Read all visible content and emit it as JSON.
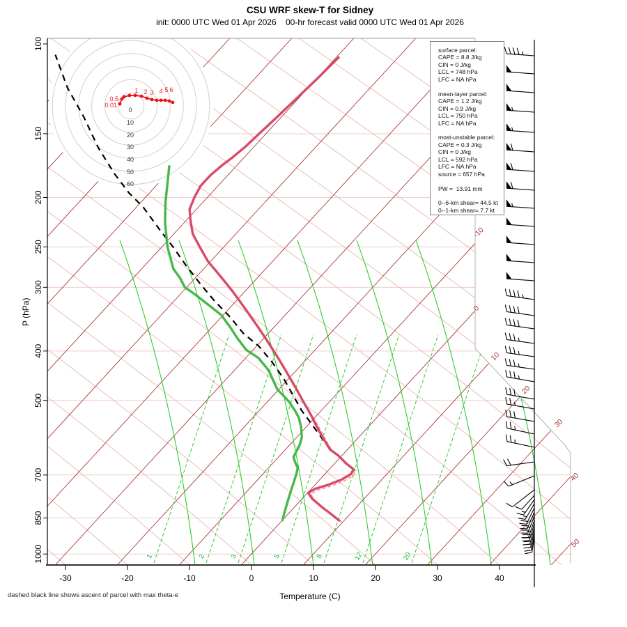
{
  "header": {
    "title": "CSU WRF skew-T for Sidney",
    "subtitle": "init: 0000 UTC Wed 01 Apr 2026    00-hr forecast valid 0000 UTC Wed 01 Apr 2026"
  },
  "footer_note": "dashed black line shows ascent of parcel with max theta-e",
  "parcel_info": {
    "lines": [
      "surface parcel:",
      "CAPE = 8.8 J/kg",
      "CIN = 0 J/kg",
      "LCL = 748 hPa",
      "LFC = NA hPa",
      "",
      "mean-layer parcel:",
      "CAPE = 1.2 J/kg",
      "CIN = 0.9 J/kg",
      "LCL = 750 hPa",
      "LFC = NA hPa",
      "",
      "most-unstable parcel:",
      "CAPE = 0.3 J/kg",
      "CIN = 0 J/kg",
      "LCL = 592 hPa",
      "LFC = NA hPa",
      "source = 657 hPa",
      "",
      "PW =  13.91 mm",
      "",
      "0--6-km shear= 44.5 kt",
      "0--1-km shear= 7.7 kt"
    ]
  },
  "chart_data": {
    "type": "skew-t",
    "title": "CSU WRF skew-T for Sidney",
    "xlabel": "Temperature (C)",
    "ylabel": "P (hPa)",
    "x_ticks": [
      -30,
      -20,
      -10,
      0,
      10,
      20,
      30,
      40
    ],
    "p_ticks": [
      100,
      150,
      200,
      250,
      300,
      400,
      500,
      700,
      850,
      1000
    ],
    "pressure_lines": [
      150,
      200,
      250,
      300,
      400,
      500,
      700,
      850,
      1000
    ],
    "p_range": [
      100,
      1000
    ],
    "t_range_at_1000": [
      -33,
      46
    ],
    "grid": "skew-t background: isotherms every 10C, dry adiabats, moist adiabats, mixing-ratio lines",
    "isotherm_labels": [
      {
        "v": "-10",
        "x": 689,
        "y": 336
      },
      {
        "v": "0",
        "x": 686,
        "y": 445
      },
      {
        "v": "10",
        "x": 713,
        "y": 514
      },
      {
        "v": "20",
        "x": 757,
        "y": 562
      },
      {
        "v": "30",
        "x": 804,
        "y": 610
      },
      {
        "v": "40",
        "x": 827,
        "y": 687
      },
      {
        "v": "50",
        "x": 828,
        "y": 782
      }
    ],
    "mixing_ratio_labels": [
      {
        "v": "1",
        "x": 217
      },
      {
        "v": "2",
        "x": 292
      },
      {
        "v": "3",
        "x": 338
      },
      {
        "v": "5",
        "x": 400
      },
      {
        "v": "8",
        "x": 461
      },
      {
        "v": "12",
        "x": 517
      },
      {
        "v": "20",
        "x": 587
      }
    ],
    "temperature_profile_pT": [
      [
        862,
        9.4
      ],
      [
        841,
        7.5
      ],
      [
        809,
        4.4
      ],
      [
        779,
        1.6
      ],
      [
        759,
        0.1
      ],
      [
        745,
        0.6
      ],
      [
        731,
        2.2
      ],
      [
        715,
        3.5
      ],
      [
        697,
        4.2
      ],
      [
        682,
        3.9
      ],
      [
        665,
        1.9
      ],
      [
        642,
        -0.5
      ],
      [
        624,
        -2.8
      ],
      [
        593,
        -5.6
      ],
      [
        560,
        -8.6
      ],
      [
        531,
        -11.3
      ],
      [
        503,
        -14.2
      ],
      [
        475,
        -17.2
      ],
      [
        445,
        -20.7
      ],
      [
        417,
        -24.2
      ],
      [
        388,
        -28.2
      ],
      [
        359,
        -32.6
      ],
      [
        331,
        -37.3
      ],
      [
        306,
        -41.9
      ],
      [
        285,
        -46.3
      ],
      [
        267,
        -50.4
      ],
      [
        250,
        -53.9
      ],
      [
        236,
        -56.9
      ],
      [
        222,
        -59.3
      ],
      [
        211,
        -61.1
      ],
      [
        200,
        -62.1
      ],
      [
        190,
        -62.8
      ],
      [
        181,
        -62.8
      ],
      [
        173,
        -62.4
      ],
      [
        167,
        -61.9
      ],
      [
        159,
        -61.4
      ],
      [
        150,
        -61.1
      ],
      [
        139,
        -60.7
      ],
      [
        128,
        -60.3
      ],
      [
        117,
        -59.9
      ],
      [
        109,
        -59.7
      ],
      [
        106,
        -59.6
      ]
    ],
    "dewpoint_profile_pT": [
      [
        862,
        0.1
      ],
      [
        830,
        -0.8
      ],
      [
        794,
        -1.8
      ],
      [
        755,
        -2.9
      ],
      [
        724,
        -3.8
      ],
      [
        697,
        -4.6
      ],
      [
        678,
        -5.3
      ],
      [
        659,
        -6.7
      ],
      [
        645,
        -7.6
      ],
      [
        628,
        -8.0
      ],
      [
        611,
        -8.4
      ],
      [
        590,
        -9.2
      ],
      [
        564,
        -10.8
      ],
      [
        540,
        -12.6
      ],
      [
        523,
        -14.3
      ],
      [
        503,
        -16.5
      ],
      [
        488,
        -18.5
      ],
      [
        476,
        -20.2
      ],
      [
        437,
        -24.4
      ],
      [
        413,
        -27.9
      ],
      [
        398,
        -31.1
      ],
      [
        378,
        -34.2
      ],
      [
        359,
        -37.1
      ],
      [
        340,
        -40.3
      ],
      [
        326,
        -43.6
      ],
      [
        311,
        -47.3
      ],
      [
        300,
        -50.3
      ],
      [
        288,
        -52.4
      ],
      [
        276,
        -54.9
      ],
      [
        250,
        -59.1
      ],
      [
        224,
        -63.1
      ],
      [
        204,
        -66.1
      ],
      [
        173,
        -70.9
      ]
    ],
    "parcel_ascent_pT": [
      [
        624,
        -2.8
      ],
      [
        578,
        -7.3
      ],
      [
        523,
        -13.2
      ],
      [
        454,
        -20.7
      ],
      [
        420,
        -25.2
      ],
      [
        391,
        -29.7
      ],
      [
        369,
        -34.1
      ],
      [
        343,
        -38.6
      ],
      [
        319,
        -43.5
      ],
      [
        296,
        -48.2
      ],
      [
        273,
        -53.1
      ],
      [
        250,
        -58.2
      ],
      [
        231,
        -63.0
      ],
      [
        209,
        -68.9
      ],
      [
        196,
        -73.3
      ],
      [
        180,
        -78.4
      ],
      [
        160,
        -84.9
      ],
      [
        139,
        -91.9
      ],
      [
        122,
        -98.8
      ],
      [
        105,
        -105.7
      ]
    ],
    "virtual_temp_note": "light-red dash-dot curve hugs the temperature curve below ~530 hPa",
    "hodograph": {
      "unit": "kt",
      "rings": [
        10,
        20,
        30,
        40,
        50,
        60
      ],
      "ring_labels": [
        "0",
        "10",
        "20",
        "30",
        "40",
        "50",
        "60"
      ],
      "trace_kt": [
        [
          -8.5,
          1.5
        ],
        [
          -6.9,
          5.3
        ],
        [
          -5.3,
          6.9
        ],
        [
          -1.1,
          8.0
        ],
        [
          3.2,
          8.0
        ],
        [
          8.0,
          7.4
        ],
        [
          12.2,
          5.9
        ],
        [
          16.0,
          4.8
        ],
        [
          19.7,
          4.3
        ],
        [
          22.9,
          4.3
        ],
        [
          26.1,
          4.3
        ],
        [
          29.3,
          3.7
        ],
        [
          31.9,
          2.7
        ]
      ],
      "height_labels_km": [
        {
          "t": "0.01",
          "x": 168,
          "y": 154,
          "a": "end"
        },
        {
          "t": "0.5",
          "x": 170,
          "y": 145,
          "a": "end"
        },
        {
          "t": "1",
          "x": 196,
          "y": 133
        },
        {
          "t": "2",
          "x": 209,
          "y": 135
        },
        {
          "t": "3",
          "x": 218,
          "y": 136
        },
        {
          "t": "4",
          "x": 231,
          "y": 134
        },
        {
          "t": "5",
          "x": 239,
          "y": 132
        },
        {
          "t": "6",
          "x": 246,
          "y": 132
        }
      ]
    },
    "wind_barbs": [
      {
        "y": 80,
        "f": 0,
        "b": 4,
        "h": 1,
        "a": -4
      },
      {
        "y": 106,
        "f": 1,
        "b": 0,
        "h": 0,
        "a": -4
      },
      {
        "y": 133,
        "f": 1,
        "b": 0,
        "h": 0,
        "a": -4
      },
      {
        "y": 161,
        "f": 1,
        "b": 0,
        "h": 1,
        "a": -4
      },
      {
        "y": 190,
        "f": 1,
        "b": 0,
        "h": 1,
        "a": -4
      },
      {
        "y": 218,
        "f": 1,
        "b": 1,
        "h": 0,
        "a": -4
      },
      {
        "y": 246,
        "f": 1,
        "b": 1,
        "h": 0,
        "a": -4
      },
      {
        "y": 273,
        "f": 1,
        "b": 1,
        "h": 0,
        "a": -4
      },
      {
        "y": 299,
        "f": 1,
        "b": 0,
        "h": 1,
        "a": -4
      },
      {
        "y": 325,
        "f": 1,
        "b": 0,
        "h": 0,
        "a": -4
      },
      {
        "y": 351,
        "f": 1,
        "b": 0,
        "h": 0,
        "a": -4
      },
      {
        "y": 377,
        "f": 1,
        "b": 0,
        "h": 0,
        "a": -4
      },
      {
        "y": 403,
        "f": 1,
        "b": 0,
        "h": 0,
        "a": -4
      },
      {
        "y": 430,
        "f": 0,
        "b": 4,
        "h": 1,
        "a": -8
      },
      {
        "y": 453,
        "f": 0,
        "b": 4,
        "h": 0,
        "a": -8
      },
      {
        "y": 472,
        "f": 0,
        "b": 4,
        "h": 0,
        "a": -8
      },
      {
        "y": 493,
        "f": 0,
        "b": 3,
        "h": 1,
        "a": -8
      },
      {
        "y": 512,
        "f": 0,
        "b": 3,
        "h": 1,
        "a": -8
      },
      {
        "y": 530,
        "f": 0,
        "b": 3,
        "h": 1,
        "a": -8
      },
      {
        "y": 548,
        "f": 0,
        "b": 3,
        "h": 1,
        "a": -10
      },
      {
        "y": 573,
        "f": 0,
        "b": 3,
        "h": 0,
        "a": -10
      },
      {
        "y": 587,
        "f": 0,
        "b": 2,
        "h": 1,
        "a": -10
      },
      {
        "y": 605,
        "f": 0,
        "b": 3,
        "h": 0,
        "a": -10
      },
      {
        "y": 623,
        "f": 0,
        "b": 2,
        "h": 1,
        "a": -12
      },
      {
        "y": 642,
        "f": 0,
        "b": 2,
        "h": 1,
        "a": -12
      },
      {
        "y": 663,
        "f": 0,
        "b": 2,
        "h": 0,
        "a": 8
      },
      {
        "y": 683,
        "f": 0,
        "b": 1,
        "h": 1,
        "a": 22
      },
      {
        "y": 703,
        "f": 0,
        "b": 1,
        "h": 0,
        "a": 38
      },
      {
        "y": 711,
        "f": 0,
        "b": 1,
        "h": 0,
        "a": 48,
        "s": 27
      },
      {
        "y": 717,
        "f": 0,
        "b": 1,
        "h": 1,
        "a": 55,
        "s": 27
      },
      {
        "y": 723,
        "f": 0,
        "b": 1,
        "h": 1,
        "a": 60,
        "s": 26
      },
      {
        "y": 729,
        "f": 0,
        "b": 2,
        "h": 0,
        "a": 64,
        "s": 26
      },
      {
        "y": 735,
        "f": 0,
        "b": 2,
        "h": 0,
        "a": 67,
        "s": 26
      },
      {
        "y": 741,
        "f": 0,
        "b": 2,
        "h": 1,
        "a": 69,
        "s": 26
      },
      {
        "y": 747,
        "f": 0,
        "b": 2,
        "h": 1,
        "a": 71,
        "s": 26
      },
      {
        "y": 752,
        "f": 0,
        "b": 2,
        "h": 1,
        "a": 73,
        "s": 25
      },
      {
        "y": 757,
        "f": 0,
        "b": 2,
        "h": 0,
        "a": 75,
        "s": 25
      },
      {
        "y": 762,
        "f": 0,
        "b": 1,
        "h": 1,
        "a": 77,
        "s": 24
      },
      {
        "y": 767,
        "f": 0,
        "b": 1,
        "h": 1,
        "a": 79,
        "s": 23
      },
      {
        "y": 771,
        "f": 0,
        "b": 1,
        "h": 0,
        "a": 81,
        "s": 22
      }
    ],
    "colors": {
      "temperature": "#d84a66",
      "dewpoint": "#46b846",
      "parcel": "#000000",
      "virtual": "#f2909f",
      "isotherm": "#a93939",
      "dry_adiabat": "#e9bcbc",
      "pressure_line": "#f1caca",
      "moist_adiabat": "#2ecc2e",
      "mixing_ratio": "#2ecc2e",
      "mixing_label": "#12bb33",
      "iso_label": "#a83232",
      "hodo_ring": "#cfcfcf",
      "hodo_trace": "#ee1111",
      "barb": "#000000"
    }
  }
}
